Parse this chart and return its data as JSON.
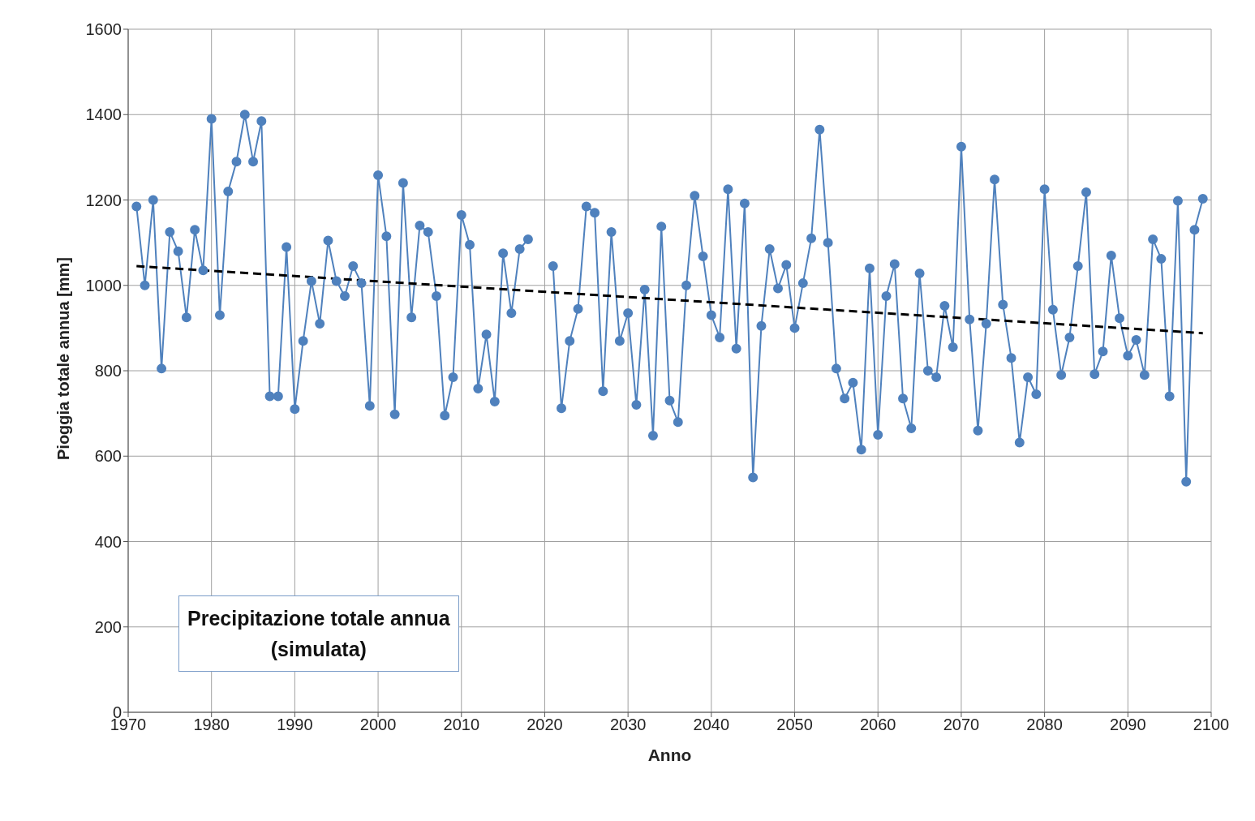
{
  "chart_data": {
    "type": "line",
    "xlabel": "Anno",
    "ylabel": "Pioggia totale annua [mm]",
    "annotations": [
      "Precipitazione totale annua\n(simulata)"
    ],
    "x": [
      1971,
      1972,
      1973,
      1974,
      1975,
      1976,
      1977,
      1978,
      1979,
      1980,
      1981,
      1982,
      1983,
      1984,
      1985,
      1986,
      1987,
      1988,
      1989,
      1990,
      1991,
      1992,
      1993,
      1994,
      1995,
      1996,
      1997,
      1998,
      1999,
      2000,
      2001,
      2002,
      2003,
      2004,
      2005,
      2006,
      2007,
      2008,
      2009,
      2010,
      2011,
      2012,
      2013,
      2014,
      2015,
      2016,
      2017,
      2018,
      2019,
      2020,
      2021,
      2022,
      2023,
      2024,
      2025,
      2026,
      2027,
      2028,
      2029,
      2030,
      2031,
      2032,
      2033,
      2034,
      2035,
      2036,
      2037,
      2038,
      2039,
      2040,
      2041,
      2042,
      2043,
      2044,
      2045,
      2046,
      2047,
      2048,
      2049,
      2050,
      2051,
      2052,
      2053,
      2054,
      2055,
      2056,
      2057,
      2058,
      2059,
      2060,
      2061,
      2062,
      2063,
      2064,
      2065,
      2066,
      2067,
      2068,
      2069,
      2070,
      2071,
      2072,
      2073,
      2074,
      2075,
      2076,
      2077,
      2078,
      2079,
      2080,
      2081,
      2082,
      2083,
      2084,
      2085,
      2086,
      2087,
      2088,
      2089,
      2090,
      2091,
      2092,
      2093,
      2094,
      2095,
      2096,
      2097,
      2098,
      2099
    ],
    "series": [
      {
        "color": "#4f81bd",
        "marker": "circle",
        "line_style": "solid",
        "values": [
          1185,
          1000,
          1200,
          805,
          1125,
          1080,
          925,
          1130,
          1035,
          1390,
          930,
          1220,
          1290,
          1400,
          1290,
          1385,
          740,
          740,
          1090,
          710,
          870,
          1010,
          910,
          1105,
          1010,
          975,
          1045,
          1005,
          718,
          1258,
          1115,
          698,
          1240,
          925,
          1140,
          1125,
          975,
          695,
          785,
          1165,
          1095,
          758,
          885,
          728,
          1075,
          935,
          1085,
          1108,
          null,
          null,
          1045,
          712,
          870,
          945,
          1185,
          1170,
          752,
          1125,
          870,
          935,
          720,
          990,
          648,
          1138,
          730,
          680,
          1000,
          1210,
          1068,
          930,
          878,
          1225,
          852,
          1192,
          550,
          905,
          1085,
          993,
          1048,
          900,
          1005,
          1110,
          1365,
          1100,
          805,
          735,
          772,
          615,
          1040,
          650,
          975,
          1050,
          735,
          665,
          1028,
          800,
          785,
          952,
          855,
          1325,
          920,
          660,
          910,
          1248,
          955,
          830,
          632,
          785,
          745,
          1225,
          943,
          790,
          878,
          1045,
          1218,
          792,
          845,
          1070,
          923,
          835,
          872,
          790,
          1108,
          1062,
          740,
          1198,
          540,
          1130,
          1203
        ]
      },
      {
        "type": "line",
        "color": "#000000",
        "marker": "none",
        "line_style": "dashed",
        "x": [
          1971,
          2099
        ],
        "values": [
          1045,
          888
        ]
      }
    ],
    "xlim": [
      1970,
      2100
    ],
    "xticks": [
      1970,
      1980,
      1990,
      2000,
      2010,
      2020,
      2030,
      2040,
      2050,
      2060,
      2070,
      2080,
      2090,
      2100
    ],
    "ylim": [
      0,
      1600
    ],
    "yticks": [
      0,
      200,
      400,
      600,
      800,
      1000,
      1200,
      1400,
      1600
    ],
    "grid": true
  }
}
